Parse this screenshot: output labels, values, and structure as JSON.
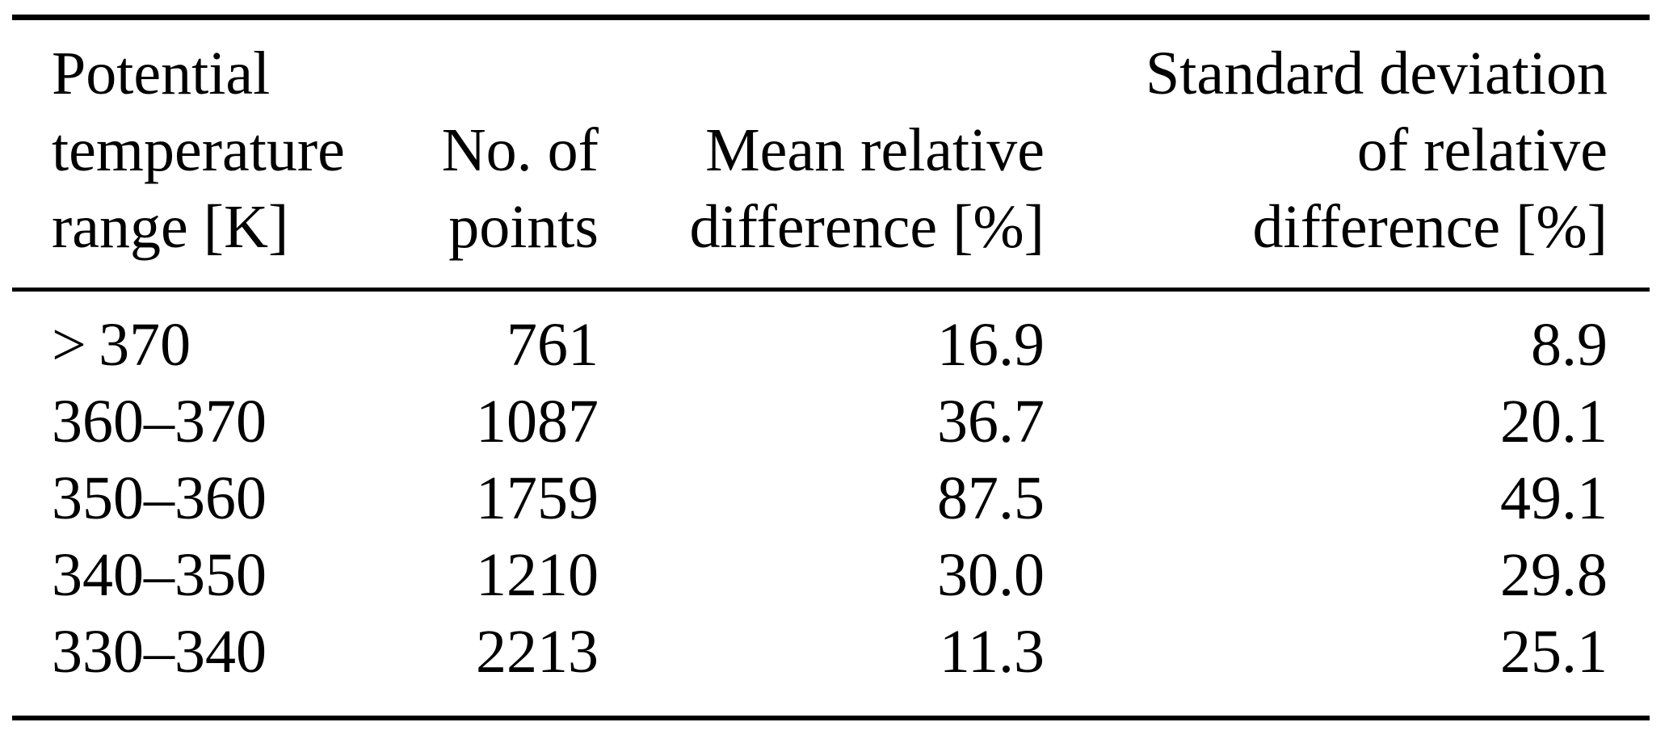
{
  "page": {
    "background_color": "#ffffff",
    "text_color": "#000000",
    "rule_color": "#000000"
  },
  "table": {
    "columns": [
      {
        "id": "theta_range",
        "align": "left",
        "header_lines": [
          "Potential",
          "temperature",
          "range [K]"
        ]
      },
      {
        "id": "n_points",
        "align": "right",
        "header_lines": [
          "No. of",
          "points"
        ]
      },
      {
        "id": "mean_rel_diff",
        "align": "right",
        "header_lines": [
          "Mean relative",
          "difference [%]"
        ]
      },
      {
        "id": "std_rel_diff",
        "align": "right",
        "header_lines": [
          "Standard deviation",
          "of relative",
          "difference [%]"
        ]
      }
    ],
    "rows": [
      {
        "cells": [
          "> 370",
          "761",
          "16.9",
          "8.9"
        ]
      },
      {
        "cells": [
          "360–370",
          "1087",
          "36.7",
          "20.1"
        ]
      },
      {
        "cells": [
          "350–360",
          "1759",
          "87.5",
          "49.1"
        ]
      },
      {
        "cells": [
          "340–350",
          "1210",
          "30.0",
          "29.8"
        ]
      },
      {
        "cells": [
          "330–340",
          "2213",
          "11.3",
          "25.1"
        ]
      }
    ]
  },
  "chart_data": {
    "type": "table",
    "title": "",
    "columns": [
      "Potential temperature range [K]",
      "No. of points",
      "Mean relative difference [%]",
      "Standard deviation of relative difference [%]"
    ],
    "rows": [
      [
        "> 370",
        761,
        16.9,
        8.9
      ],
      [
        "360–370",
        1087,
        36.7,
        20.1
      ],
      [
        "350–360",
        1759,
        87.5,
        49.1
      ],
      [
        "340–350",
        1210,
        30.0,
        29.8
      ],
      [
        "330–340",
        2213,
        11.3,
        25.1
      ]
    ]
  }
}
